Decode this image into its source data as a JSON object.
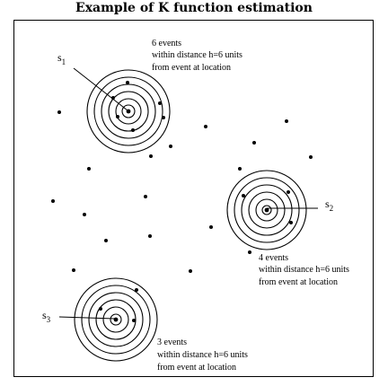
{
  "title": "Example of K function estimation",
  "callouts": [
    {
      "id": "s1",
      "label": "s",
      "subscript": "1",
      "lines": [
        "6 events",
        "within distance h=6 units",
        "from event at location"
      ]
    },
    {
      "id": "s2",
      "label": "s",
      "subscript": "2",
      "lines": [
        "4 events",
        "within distance h=6 units",
        "from event at location"
      ]
    },
    {
      "id": "s3",
      "label": "s",
      "subscript": "3",
      "lines": [
        "3 events",
        "within distance h=6 units",
        "from event at location"
      ]
    }
  ]
}
